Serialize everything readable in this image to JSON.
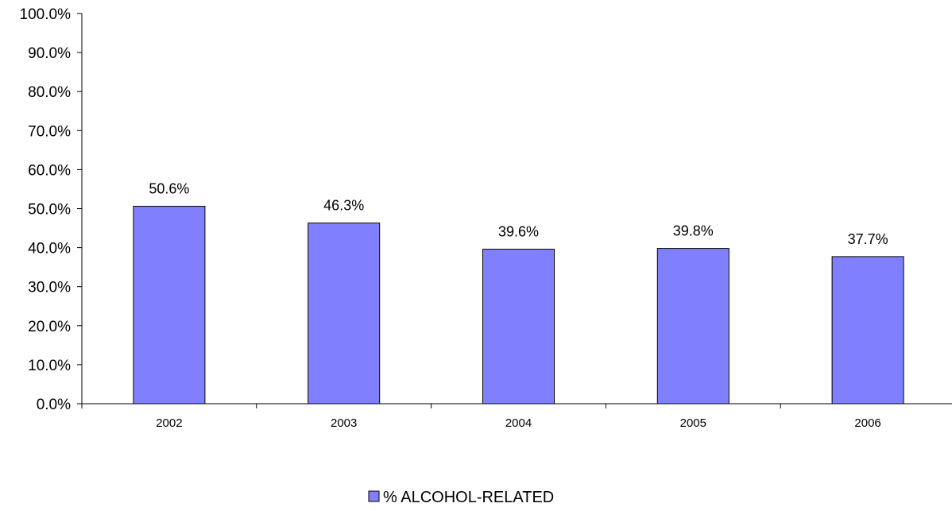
{
  "chart_data": {
    "type": "bar",
    "categories": [
      "2002",
      "2003",
      "2004",
      "2005",
      "2006"
    ],
    "series": [
      {
        "name": "% ALCOHOL-RELATED",
        "values": [
          50.6,
          46.3,
          39.6,
          39.8,
          37.7
        ],
        "data_labels": [
          "50.6%",
          "46.3%",
          "39.6%",
          "39.8%",
          "37.7%"
        ],
        "color": "#8080ff"
      }
    ],
    "ylim": [
      0,
      100
    ],
    "yticks": [
      0,
      10,
      20,
      30,
      40,
      50,
      60,
      70,
      80,
      90,
      100
    ],
    "ytick_labels": [
      "0.0%",
      "10.0%",
      "20.0%",
      "30.0%",
      "40.0%",
      "50.0%",
      "60.0%",
      "70.0%",
      "80.0%",
      "90.0%",
      "100.0%"
    ],
    "title": "",
    "xlabel": "",
    "ylabel": "",
    "grid": false,
    "legend_position": "bottom-center",
    "bar_edge_color": "#000000",
    "axis_color": "#000000"
  }
}
